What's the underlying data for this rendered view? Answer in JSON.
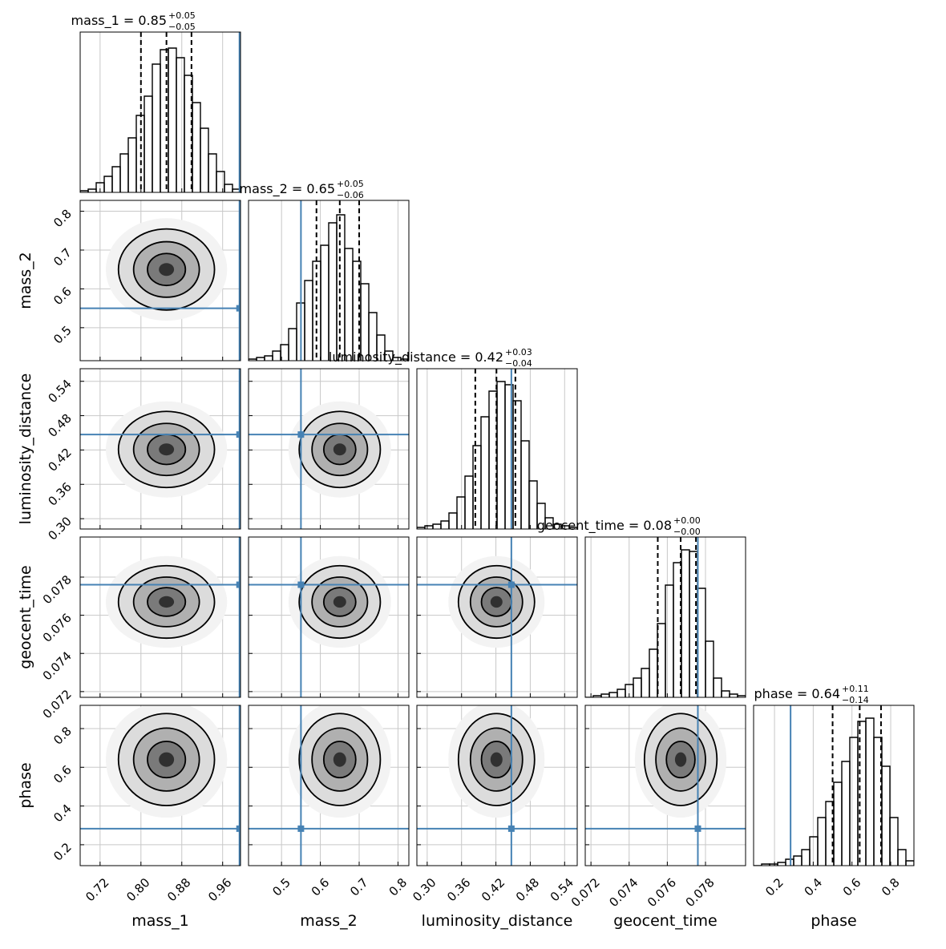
{
  "chart_data": {
    "type": "corner",
    "truth_color": "#4682b4",
    "grid": true,
    "hist_ylim": [
      0,
      1
    ],
    "parameters": [
      {
        "name": "mass_1",
        "title": "mass_1 = 0.85",
        "upper": "+0.05",
        "lower": "−0.05",
        "lim": [
          0.681,
          0.995
        ],
        "ticks": [
          0.72,
          {
            "value": 0.8,
            "label": "0.80"
          },
          0.88,
          0.96
        ],
        "truth": 0.993,
        "quantiles": [
          0.8,
          0.85,
          0.899
        ],
        "bins": [
          0.681,
          0.6967,
          0.7124,
          0.7281,
          0.7438,
          0.7595,
          0.7752,
          0.7909,
          0.8066,
          0.8223,
          0.838,
          0.8537,
          0.8694,
          0.8851,
          0.9008,
          0.9165,
          0.9322,
          0.9479,
          0.9636,
          0.9793,
          0.995
        ],
        "counts": [
          0.01,
          0.02,
          0.06,
          0.1,
          0.16,
          0.24,
          0.34,
          0.48,
          0.6,
          0.8,
          0.89,
          0.9,
          0.84,
          0.73,
          0.56,
          0.4,
          0.24,
          0.13,
          0.05,
          0.02
        ]
      },
      {
        "name": "mass_2",
        "title": "mass_2 = 0.65",
        "upper": "+0.05",
        "lower": "−0.06",
        "lim": [
          0.415,
          0.828
        ],
        "ticks": [
          0.5,
          0.6,
          0.7,
          0.8
        ],
        "truth": 0.55,
        "quantiles": [
          0.59,
          0.65,
          0.7
        ],
        "bins": [
          0.415,
          0.4357,
          0.4563,
          0.477,
          0.4976,
          0.5183,
          0.5389,
          0.5596,
          0.5802,
          0.6009,
          0.6215,
          0.6422,
          0.6628,
          0.6835,
          0.7041,
          0.7248,
          0.7454,
          0.7661,
          0.7867,
          0.8074,
          0.828
        ],
        "counts": [
          0.01,
          0.02,
          0.03,
          0.06,
          0.1,
          0.2,
          0.36,
          0.5,
          0.62,
          0.72,
          0.86,
          0.91,
          0.7,
          0.62,
          0.48,
          0.3,
          0.16,
          0.06,
          0.02,
          0.01
        ]
      },
      {
        "name": "luminosity_distance",
        "title": "luminosity_distance = 0.42",
        "upper": "+0.03",
        "lower": "−0.04",
        "lim": [
          0.282,
          0.562
        ],
        "ticks": [
          {
            "value": 0.3,
            "label": "0.30"
          },
          0.36,
          0.42,
          0.48,
          0.54
        ],
        "truth": 0.447,
        "quantiles": [
          0.384,
          0.421,
          0.454
        ],
        "bins": [
          0.282,
          0.296,
          0.31,
          0.324,
          0.338,
          0.352,
          0.366,
          0.38,
          0.394,
          0.408,
          0.422,
          0.436,
          0.45,
          0.464,
          0.478,
          0.492,
          0.506,
          0.52,
          0.534,
          0.548,
          0.562
        ],
        "counts": [
          0.01,
          0.02,
          0.03,
          0.05,
          0.1,
          0.2,
          0.33,
          0.52,
          0.7,
          0.86,
          0.92,
          0.9,
          0.8,
          0.55,
          0.3,
          0.16,
          0.07,
          0.03,
          0.02,
          0.01
        ]
      },
      {
        "name": "geocent_time",
        "title": "geocent_time = 0.08",
        "upper": "+0.00",
        "lower": "−0.00",
        "lim": [
          0.0717,
          0.0801
        ],
        "ticks": [
          0.072,
          0.074,
          0.076,
          0.078
        ],
        "truth": 0.0776,
        "quantiles": [
          0.0755,
          0.0767,
          0.0775
        ],
        "bins": [
          0.0717,
          0.07212,
          0.07254,
          0.07296,
          0.07338,
          0.0738,
          0.07422,
          0.07464,
          0.07506,
          0.07548,
          0.0759,
          0.07632,
          0.07674,
          0.07716,
          0.07758,
          0.078,
          0.07842,
          0.07884,
          0.07926,
          0.07968,
          0.0801
        ],
        "counts": [
          0,
          0.01,
          0.02,
          0.03,
          0.05,
          0.08,
          0.12,
          0.18,
          0.3,
          0.46,
          0.7,
          0.84,
          0.92,
          0.91,
          0.68,
          0.35,
          0.12,
          0.04,
          0.02,
          0.01
        ]
      },
      {
        "name": "phase",
        "title": "phase = 0.64",
        "upper": "+0.11",
        "lower": "−0.14",
        "lim": [
          0.092,
          0.92
        ],
        "ticks": [
          0.2,
          0.4,
          0.6,
          0.8
        ],
        "truth": 0.283,
        "quantiles": [
          0.5,
          0.64,
          0.75
        ],
        "bins": [
          0.092,
          0.1334,
          0.1748,
          0.2162,
          0.2576,
          0.299,
          0.3404,
          0.3818,
          0.4232,
          0.4646,
          0.506,
          0.5474,
          0.5888,
          0.6302,
          0.6716,
          0.713,
          0.7544,
          0.7958,
          0.8372,
          0.8786,
          0.92
        ],
        "counts": [
          0,
          0.01,
          0.01,
          0.02,
          0.04,
          0.06,
          0.1,
          0.18,
          0.3,
          0.4,
          0.52,
          0.65,
          0.8,
          0.9,
          0.92,
          0.8,
          0.62,
          0.3,
          0.1,
          0.03
        ]
      }
    ]
  }
}
